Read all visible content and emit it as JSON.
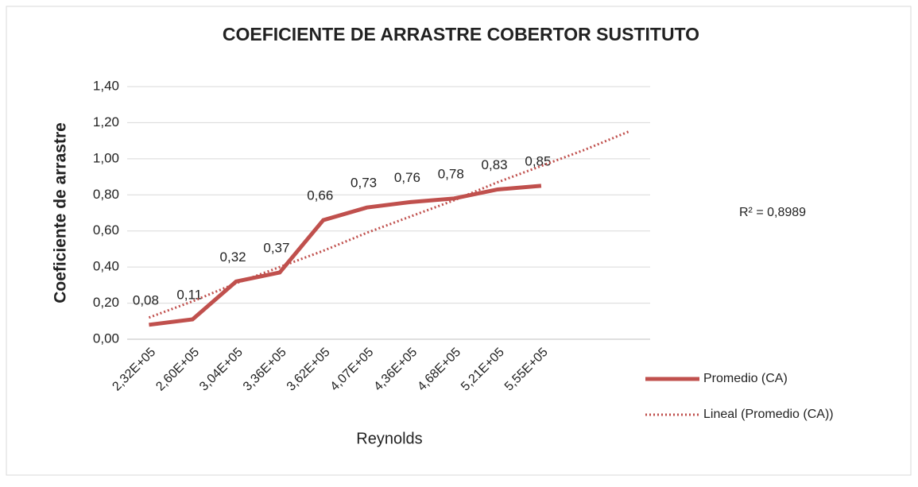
{
  "chart_data": {
    "type": "line",
    "title": "COEFICIENTE DE ARRASTRE COBERTOR SUSTITUTO",
    "x_label": "Reynolds",
    "y_label": "Coeficiente de arrastre",
    "categories": [
      "2,32E+05",
      "2,60E+05",
      "3,04E+05",
      "3,36E+05",
      "3,62E+05",
      "4,07E+05",
      "4,36E+05",
      "4,68E+05",
      "5,21E+05",
      "5,55E+05",
      null,
      null
    ],
    "series": [
      {
        "name": "Promedio (CA)",
        "color": "#c0504d",
        "style": "solid",
        "values": [
          0.08,
          0.11,
          0.32,
          0.37,
          0.66,
          0.73,
          0.76,
          0.78,
          0.83,
          0.85,
          null,
          null
        ],
        "value_labels": [
          "0,08",
          "0,11",
          "0,32",
          "0,37",
          "0,66",
          "0,73",
          "0,76",
          "0,78",
          "0,83",
          "0,85",
          null,
          null
        ]
      },
      {
        "name": "Lineal (Promedio (CA))",
        "color": "#c0504d",
        "style": "dotted",
        "values": [
          0.12,
          0.21,
          0.31,
          0.4,
          0.49,
          0.59,
          0.68,
          0.77,
          0.87,
          0.96,
          1.05,
          1.15
        ]
      }
    ],
    "annotations": [
      "R² = 0,8989"
    ],
    "ylim": [
      0,
      1.4
    ],
    "yticks": [
      {
        "value": 0,
        "label": "0,00"
      },
      {
        "value": 0.2,
        "label": "0,20"
      },
      {
        "value": 0.4,
        "label": "0,40"
      },
      {
        "value": 0.6,
        "label": "0,60"
      },
      {
        "value": 0.8,
        "label": "0,80"
      },
      {
        "value": 1.0,
        "label": "1,00"
      },
      {
        "value": 1.2,
        "label": "1,20"
      },
      {
        "value": 1.4,
        "label": "1,40"
      }
    ],
    "grid": true,
    "legend": "right"
  }
}
